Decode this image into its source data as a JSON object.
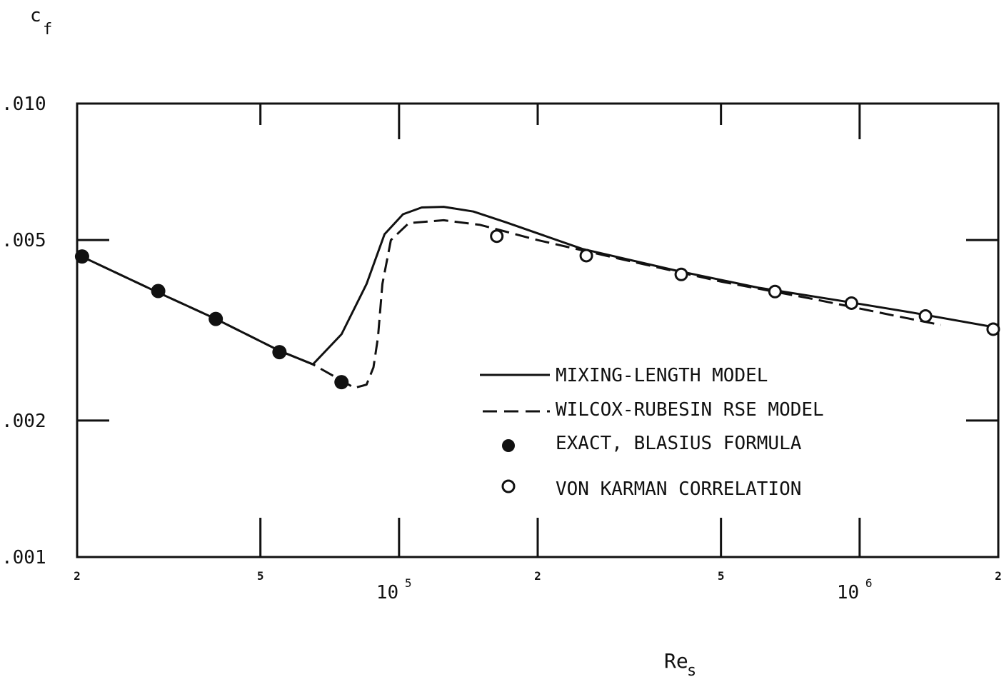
{
  "chart_data": {
    "type": "line",
    "title": "",
    "xlabel": "Re",
    "xlabel_sub": "s",
    "ylabel": "c",
    "ylabel_sub": "f",
    "x_scale": "log",
    "y_scale": "log",
    "xlim": [
      20000,
      2000000
    ],
    "ylim": [
      0.001,
      0.01
    ],
    "y_ticks": [
      {
        "value": 0.01,
        "label": ".010"
      },
      {
        "value": 0.005,
        "label": ".005"
      },
      {
        "value": 0.002,
        "label": ".002"
      },
      {
        "value": 0.001,
        "label": ".001"
      }
    ],
    "x_minor_ticks": [
      {
        "value": 20000,
        "label": "2"
      },
      {
        "value": 50000,
        "label": "5"
      },
      {
        "value": 200000,
        "label": "2"
      },
      {
        "value": 500000,
        "label": "5"
      },
      {
        "value": 2000000,
        "label": "2"
      }
    ],
    "x_major_ticks": [
      {
        "value": 100000,
        "base": "10",
        "exp": "5"
      },
      {
        "value": 1000000,
        "base": "10",
        "exp": "6"
      }
    ],
    "grid": false,
    "legend_position": "lower-right",
    "series": [
      {
        "name": "MIXING-LENGTH MODEL",
        "style": "solid",
        "x": [
          20000,
          30000,
          40000,
          55000,
          65000,
          75000,
          85000,
          93000,
          102000,
          112000,
          125000,
          145000,
          170000,
          250000,
          400000,
          600000,
          900000,
          1300000,
          2000000
        ],
        "y": [
          0.00465,
          0.00383,
          0.00335,
          0.00285,
          0.00266,
          0.0031,
          0.004,
          0.00515,
          0.0057,
          0.0059,
          0.00592,
          0.00578,
          0.00548,
          0.00478,
          0.00428,
          0.00393,
          0.00368,
          0.00346,
          0.0032
        ]
      },
      {
        "name": "WILCOX-RUBESIN RSE MODEL",
        "style": "dashed",
        "x": [
          20000,
          30000,
          40000,
          55000,
          65000,
          75000,
          80000,
          85000,
          88000,
          90000,
          92000,
          96000,
          105000,
          125000,
          150000,
          200000,
          300000,
          500000,
          800000,
          1200000,
          1500000
        ],
        "y": [
          0.00465,
          0.00383,
          0.00335,
          0.00285,
          0.00266,
          0.00245,
          0.00236,
          0.0024,
          0.00262,
          0.00305,
          0.004,
          0.005,
          0.00545,
          0.00553,
          0.0054,
          0.005,
          0.00455,
          0.00405,
          0.0037,
          0.0034,
          0.00325
        ]
      },
      {
        "name": "EXACT, BLASIUS FORMULA",
        "style": "filled-circle",
        "x": [
          20500,
          30000,
          40000,
          55000,
          75000
        ],
        "y": [
          0.0046,
          0.00386,
          0.00335,
          0.00283,
          0.00243
        ]
      },
      {
        "name": "VON KARMAN CORRELATION",
        "style": "open-circle",
        "x": [
          163000,
          255000,
          410000,
          655000,
          960000,
          1390000,
          1950000
        ],
        "y": [
          0.0051,
          0.00462,
          0.0042,
          0.00385,
          0.00363,
          0.0034,
          0.00318
        ]
      }
    ]
  }
}
